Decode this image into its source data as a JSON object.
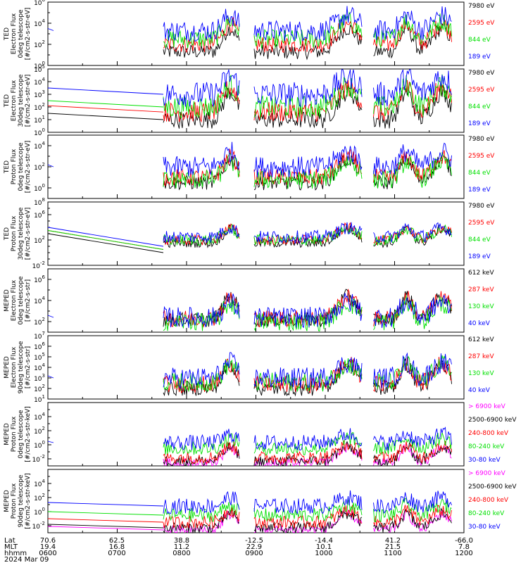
{
  "colors": {
    "blue": "#0000ff",
    "red": "#ff0000",
    "green": "#00e000",
    "black": "#000000",
    "magenta": "#ff00ff"
  },
  "footer": {
    "row_labels": [
      "Lat",
      "MLT",
      "hhmm",
      "2024 Mar 09"
    ],
    "columns": [
      {
        "lat": "70.6",
        "mlt": "19.4",
        "hhmm": "0600"
      },
      {
        "lat": "62.5",
        "mlt": "16.8",
        "hhmm": "0700"
      },
      {
        "lat": "38.8",
        "mlt": "11.2",
        "hhmm": "0800"
      },
      {
        "lat": "-12.5",
        "mlt": "22.9",
        "hhmm": "0900"
      },
      {
        "lat": "-14.4",
        "mlt": "10.1",
        "hhmm": "1000"
      },
      {
        "lat": "41.2",
        "mlt": "21.5",
        "hhmm": "1100"
      },
      {
        "lat": "-66.0",
        "mlt": "7.8",
        "hhmm": "1200"
      }
    ]
  },
  "chart_data": [
    {
      "type": "line",
      "ylabel": [
        "TED",
        "Electron Flux",
        "0deg telescope",
        "[#/cm2-s-str-eV]"
      ],
      "yscale": "log",
      "ylim_exp": [
        0,
        6
      ],
      "tick_exponents": [
        0,
        2,
        4,
        6
      ],
      "x_time_range": [
        "0600",
        "1200"
      ],
      "series": [
        {
          "name": "7980 eV",
          "color": "black",
          "base_exp": 1.3
        },
        {
          "name": "2595 eV",
          "color": "red",
          "base_exp": 2.0
        },
        {
          "name": "844 eV",
          "color": "green",
          "base_exp": 2.5
        },
        {
          "name": "189 eV",
          "color": "blue",
          "base_exp": 3.3
        }
      ]
    },
    {
      "type": "line",
      "ylabel": [
        "TED",
        "Electron Flux",
        "30deg telescope",
        "[#/cm2-s-str-eV]"
      ],
      "yscale": "log",
      "ylim_exp": [
        0,
        5
      ],
      "tick_exponents": [
        0,
        1,
        2,
        3,
        4,
        5
      ],
      "x_time_range": [
        "0600",
        "1200"
      ],
      "series": [
        {
          "name": "7980 eV",
          "color": "black",
          "base_exp": 1.0
        },
        {
          "name": "2595 eV",
          "color": "red",
          "base_exp": 1.6
        },
        {
          "name": "844 eV",
          "color": "green",
          "base_exp": 2.0
        },
        {
          "name": "189 eV",
          "color": "blue",
          "base_exp": 3.0
        }
      ]
    },
    {
      "type": "line",
      "ylabel": [
        "TED",
        "Proton Flux",
        "0deg telescope",
        "[#/cm2-s-str-eV]"
      ],
      "yscale": "log",
      "ylim_exp": [
        -1,
        5
      ],
      "tick_exponents": [
        0,
        2,
        4
      ],
      "x_time_range": [
        "0600",
        "1200"
      ],
      "series": [
        {
          "name": "7980 eV",
          "color": "black",
          "base_exp": 0.5
        },
        {
          "name": "2595 eV",
          "color": "red",
          "base_exp": 1.0
        },
        {
          "name": "844 eV",
          "color": "green",
          "base_exp": 0.8
        },
        {
          "name": "189 eV",
          "color": "blue",
          "base_exp": 2.0
        }
      ]
    },
    {
      "type": "line",
      "ylabel": [
        "TED",
        "Proton Flux",
        "30deg telescope",
        "[#/cm2-s-str-eV]"
      ],
      "yscale": "log",
      "ylim_exp": [
        -2,
        8
      ],
      "tick_exponents": [
        -2,
        2,
        6,
        8
      ],
      "x_time_range": [
        "0600",
        "1200"
      ],
      "series": [
        {
          "name": "7980 eV",
          "color": "black",
          "base_exp": 1.5
        },
        {
          "name": "2595 eV",
          "color": "red",
          "base_exp": 2.0
        },
        {
          "name": "844 eV",
          "color": "green",
          "base_exp": 2.0
        },
        {
          "name": "189 eV",
          "color": "blue",
          "base_exp": 2.5
        }
      ]
    },
    {
      "type": "line",
      "ylabel": [
        "MEPED",
        "Electron Flux",
        "0deg telescope",
        "[#/cm2-s-str]"
      ],
      "yscale": "log",
      "ylim_exp": [
        1,
        7
      ],
      "tick_exponents": [
        2,
        4,
        6
      ],
      "x_time_range": [
        "0600",
        "1200"
      ],
      "series": [
        {
          "name": "612 keV",
          "color": "black",
          "base_exp": 2.2
        },
        {
          "name": "287 keV",
          "color": "red",
          "base_exp": 2.3
        },
        {
          "name": "130 keV",
          "color": "green",
          "base_exp": 2.0
        },
        {
          "name": "40 keV",
          "color": "blue",
          "base_exp": 2.4
        }
      ]
    },
    {
      "type": "line",
      "ylabel": [
        "MEPED",
        "Electron Flux",
        "90deg telescope",
        "[#/cm2-s-str]"
      ],
      "yscale": "log",
      "ylim_exp": [
        1,
        7
      ],
      "tick_exponents": [
        1,
        2,
        3,
        4,
        5,
        6,
        7
      ],
      "x_time_range": [
        "0600",
        "1200"
      ],
      "series": [
        {
          "name": "612 keV",
          "color": "black",
          "base_exp": 2.0
        },
        {
          "name": "287 keV",
          "color": "red",
          "base_exp": 2.4
        },
        {
          "name": "130 keV",
          "color": "green",
          "base_exp": 2.6
        },
        {
          "name": "40 keV",
          "color": "blue",
          "base_exp": 3.0
        }
      ]
    },
    {
      "type": "line",
      "ylabel": [
        "MEPED",
        "Proton Flux",
        "0deg telescope",
        "[#/cm2-s-str-keV]"
      ],
      "yscale": "log",
      "ylim_exp": [
        -3,
        6
      ],
      "tick_exponents": [
        -2,
        0,
        2,
        4
      ],
      "x_time_range": [
        "0600",
        "1200"
      ],
      "series": [
        {
          "name": "> 6900 keV",
          "color": "magenta",
          "base_exp": -2.6
        },
        {
          "name": "2500-6900 keV",
          "color": "black",
          "base_exp": -2.3
        },
        {
          "name": "240-800 keV",
          "color": "red",
          "base_exp": -1.8
        },
        {
          "name": "80-240 keV",
          "color": "green",
          "base_exp": -0.5
        },
        {
          "name": "30-80 keV",
          "color": "blue",
          "base_exp": 0.3
        }
      ]
    },
    {
      "type": "line",
      "ylabel": [
        "MEPED",
        "Proton Flux",
        "90deg telescope",
        "[#/cm2-s-str-keV]"
      ],
      "yscale": "log",
      "ylim_exp": [
        -3,
        6
      ],
      "tick_exponents": [
        -2,
        0,
        2,
        4
      ],
      "x_time_range": [
        "0600",
        "1200"
      ],
      "series": [
        {
          "name": "> 6900 keV",
          "color": "magenta",
          "base_exp": -2.6
        },
        {
          "name": "2500-6900 keV",
          "color": "black",
          "base_exp": -2.3
        },
        {
          "name": "240-800 keV",
          "color": "red",
          "base_exp": -1.5
        },
        {
          "name": "80-240 keV",
          "color": "green",
          "base_exp": -0.5
        },
        {
          "name": "30-80 keV",
          "color": "blue",
          "base_exp": 0.8
        }
      ]
    }
  ]
}
